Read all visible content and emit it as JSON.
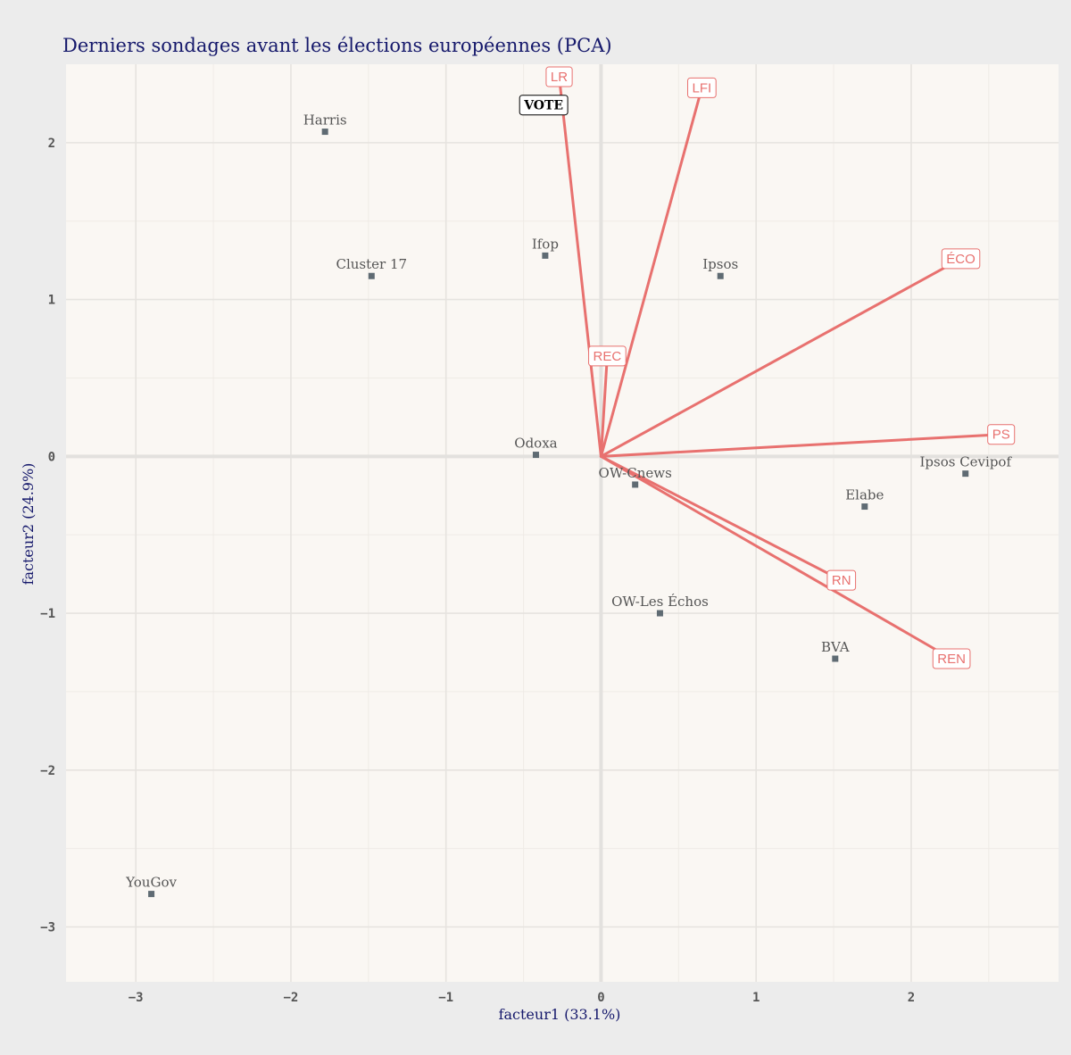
{
  "chart_data": {
    "type": "scatter",
    "title": "Derniers sondages avant les élections européennes (PCA)",
    "xlabel": "facteur1 (33.1%)",
    "ylabel": "facteur2 (24.9%)",
    "xlim": [
      -3.45,
      2.95
    ],
    "ylim": [
      -3.35,
      2.5
    ],
    "x_ticks": [
      {
        "value": -3,
        "label": "−3"
      },
      {
        "value": -2,
        "label": "−2"
      },
      {
        "value": -1,
        "label": "−1"
      },
      {
        "value": 0,
        "label": "0"
      },
      {
        "value": 1,
        "label": "1"
      },
      {
        "value": 2,
        "label": "2"
      }
    ],
    "y_ticks": [
      {
        "value": 2,
        "label": "2"
      },
      {
        "value": 1,
        "label": "1"
      },
      {
        "value": 0,
        "label": "0"
      },
      {
        "value": -1,
        "label": "−1"
      },
      {
        "value": -2,
        "label": "−2"
      },
      {
        "value": -3,
        "label": "−3"
      }
    ],
    "grid": true,
    "points": [
      {
        "label": "Harris",
        "x": -1.78,
        "y": 2.07
      },
      {
        "label": "Cluster 17",
        "x": -1.48,
        "y": 1.15
      },
      {
        "label": "Ifop",
        "x": -0.36,
        "y": 1.28
      },
      {
        "label": "Ipsos",
        "x": 0.77,
        "y": 1.15
      },
      {
        "label": "Odoxa",
        "x": -0.42,
        "y": 0.01
      },
      {
        "label": "OW-Cnews",
        "x": 0.22,
        "y": -0.18
      },
      {
        "label": "Ipsos Cevipof",
        "x": 2.35,
        "y": -0.11
      },
      {
        "label": "Elabe",
        "x": 1.7,
        "y": -0.32
      },
      {
        "label": "OW-Les Échos",
        "x": 0.38,
        "y": -1.0
      },
      {
        "label": "BVA",
        "x": 1.51,
        "y": -1.29
      },
      {
        "label": "YouGov",
        "x": -2.9,
        "y": -2.79
      }
    ],
    "vectors": [
      {
        "name": "LR",
        "x": -0.27,
        "y": 2.42
      },
      {
        "name": "LFI",
        "x": 0.65,
        "y": 2.35
      },
      {
        "name": "ÉCO",
        "x": 2.32,
        "y": 1.26
      },
      {
        "name": "REC",
        "x": 0.04,
        "y": 0.64
      },
      {
        "name": "PS",
        "x": 2.58,
        "y": 0.14
      },
      {
        "name": "RN",
        "x": 1.55,
        "y": -0.79
      },
      {
        "name": "REN",
        "x": 2.26,
        "y": -1.29
      }
    ],
    "annotation": {
      "text": "VOTE",
      "x": -0.37,
      "y": 2.24
    },
    "colors": {
      "vector": "#e8716f",
      "point": "#5f6b73",
      "panel": "#faf7f3",
      "background": "#ececec",
      "title": "#15186b"
    }
  }
}
